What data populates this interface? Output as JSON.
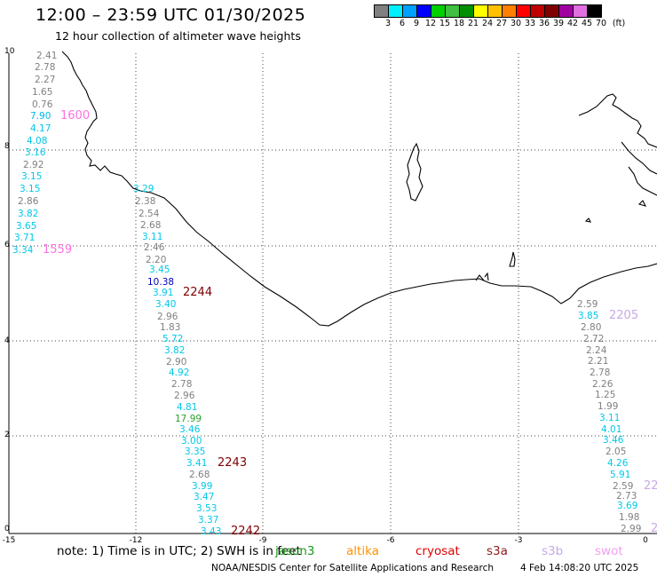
{
  "title": "12:00 – 23:59 UTC 01/30/2025",
  "subtitle": "12 hour collection of altimeter wave heights",
  "color_scale": {
    "unit": "(ft)",
    "labels": [
      "3",
      "6",
      "9",
      "12",
      "15",
      "18",
      "21",
      "24",
      "27",
      "30",
      "33",
      "36",
      "39",
      "42",
      "45",
      "70"
    ],
    "colors": [
      "#808080",
      "#00f0ff",
      "#00a0ff",
      "#0000ff",
      "#00d000",
      "#40c040",
      "#009000",
      "#ffff00",
      "#ffc000",
      "#ff8000",
      "#ff0000",
      "#c00000",
      "#800000",
      "#a000a0",
      "#e070e0",
      "#000000"
    ]
  },
  "axes": {
    "x_ticks": [
      "-15",
      "-12",
      "-9",
      "-6",
      "-3",
      "0"
    ],
    "y_ticks": [
      "0",
      "2",
      "4",
      "6",
      "8",
      "10"
    ]
  },
  "note": "note: 1) Time is in UTC; 2) SWH is in feet",
  "satellites": [
    {
      "name": "jason3",
      "color": "#1a9a1a"
    },
    {
      "name": "altika",
      "color": "#ff9000"
    },
    {
      "name": "cryosat",
      "color": "#e00000"
    },
    {
      "name": "s3a",
      "color": "#8b1a1a"
    },
    {
      "name": "s3b",
      "color": "#c8a8e8"
    },
    {
      "name": "swot",
      "color": "#f0a0f0"
    }
  ],
  "credit": "NOAA/NESDIS Center for Satellite Applications and Research",
  "timestamp": "4 Feb 14:08:20 UTC 2025",
  "tracks": [
    {
      "id": "1600",
      "color": "#ff70e0",
      "label_pos": [
        68,
        134
      ],
      "points": [
        [
          "2.41",
          "#808080",
          41,
          66
        ],
        [
          "2.78",
          "#808080",
          39,
          79
        ],
        [
          "2.27",
          "#808080",
          39,
          93
        ],
        [
          "1.65",
          "#808080",
          36,
          107
        ],
        [
          "0.76",
          "#808080",
          36,
          121
        ],
        [
          "7.90",
          "#00b8e8",
          34,
          134
        ],
        [
          "4.17",
          "#00c8e8",
          34,
          148
        ],
        [
          "4.08",
          "#00c8e8",
          30,
          162
        ],
        [
          "3.16",
          "#00c8e8",
          28,
          175
        ],
        [
          "2.92",
          "#808080",
          26,
          189
        ],
        [
          "3.15",
          "#00c8e8",
          24,
          202
        ],
        [
          "3.15",
          "#00c8e8",
          22,
          216
        ],
        [
          "2.86",
          "#808080",
          20,
          230
        ],
        [
          "3.82",
          "#00c8e8",
          20,
          244
        ],
        [
          "3.65",
          "#00c8e8",
          18,
          258
        ],
        [
          "3.71",
          "#00c8e8",
          16,
          271
        ],
        [
          "3.34",
          "#00c8e8",
          14,
          285
        ]
      ]
    },
    {
      "id": "1559",
      "color": "#ff70e0",
      "label_pos": [
        48,
        285
      ],
      "points": []
    },
    {
      "id": "2244",
      "color": "#800000",
      "label_pos": [
        206,
        333
      ],
      "points": [
        [
          "3.29",
          "#00c8e8",
          150,
          216
        ],
        [
          "2.38",
          "#808080",
          152,
          230
        ],
        [
          "2.54",
          "#808080",
          156,
          244
        ],
        [
          "2.68",
          "#808080",
          158,
          257
        ],
        [
          "3.11",
          "#00c8e8",
          160,
          270
        ],
        [
          "2.46",
          "#808080",
          162,
          282
        ],
        [
          "2.20",
          "#808080",
          164,
          296
        ],
        [
          "3.45",
          "#00c8e8",
          168,
          307
        ],
        [
          "10.38",
          "#0000c0",
          166,
          321
        ],
        [
          "3.91",
          "#00c8e8",
          172,
          333
        ],
        [
          "3.40",
          "#00c8e8",
          175,
          346
        ],
        [
          "2.96",
          "#808080",
          177,
          360
        ],
        [
          "1.83",
          "#808080",
          180,
          372
        ],
        [
          "5.72",
          "#00c8e8",
          183,
          385
        ]
      ]
    },
    {
      "id": "2243",
      "color": "#800000",
      "label_pos": [
        245,
        525
      ],
      "points": [
        [
          "3.82",
          "#00c8e8",
          185,
          398
        ],
        [
          "2.90",
          "#808080",
          187,
          411
        ],
        [
          "4.92",
          "#00c8e8",
          190,
          423
        ],
        [
          "2.78",
          "#808080",
          193,
          436
        ],
        [
          "2.96",
          "#808080",
          196,
          449
        ],
        [
          "4.81",
          "#00c8e8",
          199,
          462
        ],
        [
          "17.99",
          "#2ca02c",
          197,
          475
        ],
        [
          "3.46",
          "#00c8e8",
          202,
          487
        ],
        [
          "3.00",
          "#00c8e8",
          204,
          500
        ],
        [
          "3.35",
          "#00c8e8",
          208,
          512
        ],
        [
          "3.41",
          "#00c8e8",
          210,
          525
        ]
      ]
    },
    {
      "id": "2242",
      "color": "#800000",
      "label_pos": [
        260,
        602
      ],
      "points": [
        [
          "2.68",
          "#808080",
          213,
          538
        ],
        [
          "3.99",
          "#00c8e8",
          216,
          551
        ],
        [
          "3.47",
          "#00c8e8",
          218,
          563
        ],
        [
          "3.53",
          "#00c8e8",
          221,
          576
        ],
        [
          "3.37",
          "#00c8e8",
          223,
          589
        ],
        [
          "3.43",
          "#00c8e8",
          226,
          602
        ]
      ]
    },
    {
      "id": "2205",
      "color": "#c8a8e8",
      "label_pos": [
        686,
        359
      ],
      "points": [
        [
          "2.59",
          "#808080",
          650,
          346
        ],
        [
          "3.85",
          "#00c8e8",
          651,
          359
        ],
        [
          "2.80",
          "#808080",
          654,
          372
        ],
        [
          "2.72",
          "#808080",
          657,
          385
        ],
        [
          "2.24",
          "#808080",
          660,
          398
        ],
        [
          "2.21",
          "#808080",
          662,
          410
        ],
        [
          "2.78",
          "#808080",
          664,
          423
        ],
        [
          "2.26",
          "#808080",
          667,
          436
        ],
        [
          "1.25",
          "#808080",
          670,
          448
        ],
        [
          "1.99",
          "#808080",
          673,
          461
        ],
        [
          "3.11",
          "#00c8e8",
          675,
          474
        ],
        [
          "4.01",
          "#00c8e8",
          677,
          487
        ],
        [
          "3.46",
          "#00c8e8",
          679,
          499
        ],
        [
          "2.05",
          "#808080",
          682,
          512
        ],
        [
          "4.26",
          "#00c8e8",
          684,
          525
        ],
        [
          "5.91",
          "#00c8e8",
          687,
          538
        ]
      ]
    },
    {
      "id": "22",
      "color": "#c8a8e8",
      "label_pos": [
        725,
        551
      ],
      "points": [
        [
          "2.59",
          "#808080",
          690,
          551
        ],
        [
          "2.73",
          "#808080",
          694,
          562
        ],
        [
          "3.69",
          "#00c8e8",
          695,
          573
        ],
        [
          "1.98",
          "#808080",
          697,
          586
        ],
        [
          "2.99",
          "#808080",
          699,
          599
        ]
      ]
    },
    {
      "id": "2",
      "color": "#c8a8e8",
      "label_pos": [
        733,
        599
      ],
      "points": []
    }
  ]
}
